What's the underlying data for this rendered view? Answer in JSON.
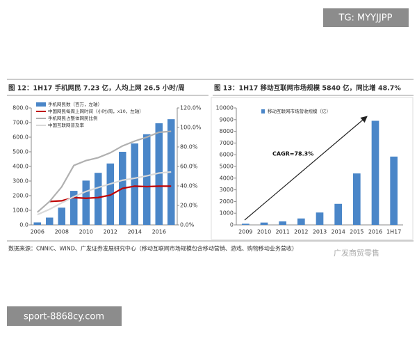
{
  "watermark_top": "TG: MYYJJPP",
  "source": "数据来源：CNNIC、WIND、广发证券发展研究中心（移动互联网市场规模包含移动营销、游戏、购物移动业务营收）",
  "watermark_logo": "广发商贸零售",
  "watermark_bottom": "sport-8868cy.com",
  "chart_data": [
    {
      "type": "combo",
      "title": "图 12：1H17 手机网民 7.23 亿，人均上网 26.5 小时/周",
      "categories": [
        "2006",
        null,
        "2008",
        null,
        "2010",
        null,
        "2012",
        null,
        "2014",
        null,
        "2016",
        null
      ],
      "ylim": [
        0,
        800
      ],
      "yticks": [
        {
          "value": 0,
          "label": "0.0"
        },
        {
          "value": 100,
          "label": "100.0"
        },
        {
          "value": 200,
          "label": "200.0"
        },
        {
          "value": 300,
          "label": "300.0"
        },
        {
          "value": 400,
          "label": "400.0"
        },
        {
          "value": 500,
          "label": "500.0"
        },
        {
          "value": 600,
          "label": "600.0"
        },
        {
          "value": 700,
          "label": "700.0"
        },
        {
          "value": 800,
          "label": "800.0"
        }
      ],
      "y2lim": [
        0,
        120
      ],
      "y2ticks": [
        {
          "value": 0,
          "label": "0.0%"
        },
        {
          "value": 20,
          "label": "20.0%"
        },
        {
          "value": 40,
          "label": "40.0%"
        },
        {
          "value": 60,
          "label": "60.0%"
        },
        {
          "value": 80,
          "label": "80.0%"
        },
        {
          "value": 100,
          "label": "100.0%"
        },
        {
          "value": 120,
          "label": "120.0%"
        }
      ],
      "series": [
        {
          "name": "手机网民数（百万，左轴）",
          "type": "bar",
          "color": "#4a86c8",
          "values": [
            17,
            50,
            118,
            233,
            303,
            356,
            420,
            500,
            557,
            620,
            695,
            723
          ]
        },
        {
          "name": "中国网民每周上网时间（小时/周，x10，左轴）",
          "type": "line",
          "color": "#c00000",
          "values": [
            null,
            160,
            165,
            187,
            182,
            187,
            204,
            250,
            265,
            262,
            265,
            265
          ]
        },
        {
          "name": "手机网民占整体网民比例",
          "type": "line",
          "axis": "y2",
          "color": "#b0b0b0",
          "values": [
            13,
            24,
            39,
            61,
            66,
            69,
            74,
            81,
            86,
            90,
            95,
            96
          ]
        },
        {
          "name": "中国互联网普及率",
          "type": "line",
          "axis": "y2",
          "color": "#d9d9d9",
          "values": [
            10.5,
            16,
            22.6,
            28.9,
            34.3,
            38.3,
            42.1,
            45.8,
            47.9,
            50.3,
            53.2,
            54.3
          ]
        }
      ]
    },
    {
      "type": "bar",
      "title": "图 13：1H17 移动互联网市场规模 5840 亿，同比增 48.7%",
      "annotation": "CAGR=78.3%",
      "categories": [
        "2009",
        "2010",
        "2011",
        "2012",
        "2013",
        "2014",
        "2015",
        "2016",
        "1H17"
      ],
      "ylim": [
        0,
        10000
      ],
      "yticks": [
        0,
        1000,
        2000,
        3000,
        4000,
        5000,
        6000,
        7000,
        8000,
        9000,
        10000
      ],
      "series": [
        {
          "name": "移动互联网市场营收规模（亿）",
          "type": "bar",
          "color": "#4a86c8",
          "values": [
            100,
            200,
            300,
            550,
            1060,
            1800,
            4400,
            8900,
            5840
          ]
        }
      ]
    }
  ]
}
